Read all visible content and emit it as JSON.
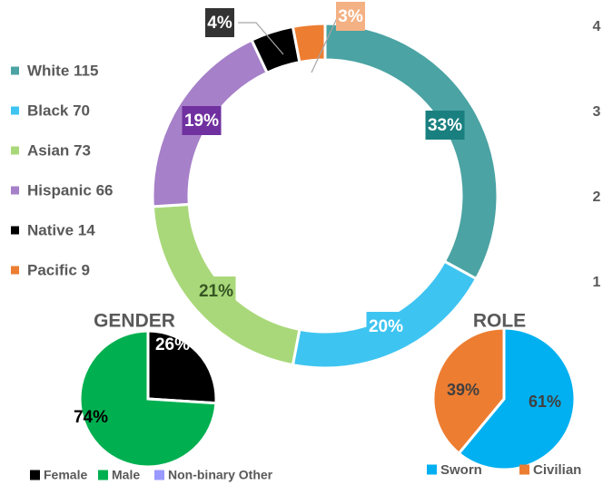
{
  "chart_data": [
    {
      "type": "donut",
      "categories": [
        "White 115",
        "Black 70",
        "Asian 73",
        "Hispanic 66",
        "Native 14",
        "Pacific 9"
      ],
      "values": [
        33,
        20,
        21,
        19,
        4,
        3
      ],
      "value_labels": [
        "33%",
        "20%",
        "21%",
        "19%",
        "4%",
        "3%"
      ],
      "colors": [
        "#4ba3a3",
        "#3ec4f1",
        "#a9d87a",
        "#a680c9",
        "#000000",
        "#ed7d31"
      ],
      "label_box_colors": [
        "#1a7f7f",
        "#3ec4f1",
        "#a9d87a",
        "#7030a0",
        "#333333",
        "#f4b183"
      ],
      "label_text_colors": [
        "#ffffff",
        "#ffffff",
        "#375623",
        "#ffffff",
        "#ffffff",
        "#ffffff"
      ],
      "legend": "left"
    },
    {
      "type": "pie",
      "title": "GENDER",
      "categories": [
        "Female",
        "Male",
        "Non-binary Other"
      ],
      "values": [
        26,
        74,
        0
      ],
      "value_labels": [
        "26%",
        "74%",
        null
      ],
      "colors": [
        "#000000",
        "#00b050",
        "#9999ff"
      ],
      "label_text_colors": [
        "#ffffff",
        "#000000",
        "#000000"
      ],
      "legend": "bottom"
    },
    {
      "type": "pie",
      "title": "ROLE",
      "categories": [
        "Sworn",
        "Civilian"
      ],
      "values": [
        61,
        39
      ],
      "value_labels": [
        "61%",
        "39%"
      ],
      "colors": [
        "#00b0f0",
        "#ed7d31"
      ],
      "label_text_colors": [
        "#404040",
        "#404040"
      ],
      "legend": "bottom"
    },
    {
      "type": "axis",
      "ylim": [
        0,
        4
      ],
      "yticks": [
        1,
        2,
        3,
        4
      ]
    }
  ]
}
